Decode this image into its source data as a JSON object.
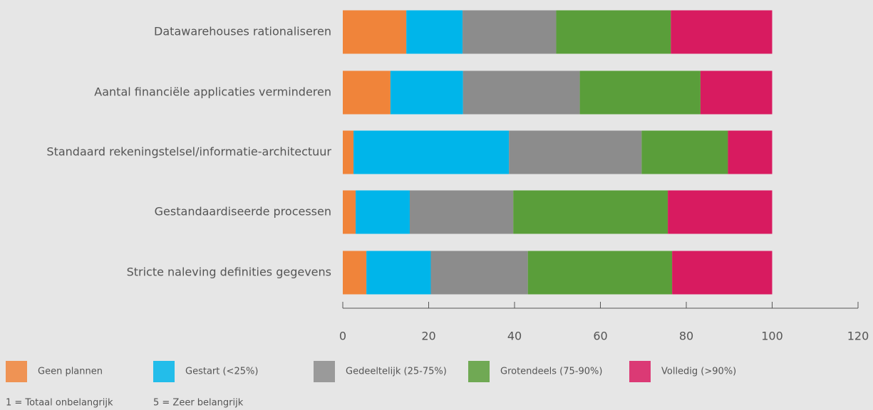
{
  "chart_data": {
    "type": "stacked-barh",
    "categories": [
      "Datawarehouses rationaliseren",
      "Aantal financiële applicaties verminderen",
      "Standaard rekeningstelsel/informatie-architectuur",
      "Gestandaardiseerde processen",
      "Stricte naleving definities gegevens"
    ],
    "series": [
      {
        "name": "Geen plannen",
        "color": "#f0843a",
        "values": [
          14.8,
          11.1,
          2.5,
          3,
          5.5
        ]
      },
      {
        "name": "Gestart (<25%)",
        "color": "#00b5ea",
        "values": [
          13.1,
          16.9,
          36.2,
          12.6,
          15
        ]
      },
      {
        "name": "Gedeeltelijk (25-75%)",
        "color": "#8c8c8c",
        "values": [
          21.8,
          27.2,
          30.9,
          24.1,
          22.6
        ]
      },
      {
        "name": "Grotendeels (75-90%)",
        "color": "#5a9e3a",
        "values": [
          26.7,
          28.1,
          20.1,
          36,
          33.6
        ]
      },
      {
        "name": "Volledig (>90%)",
        "color": "#d81b60",
        "values": [
          23.6,
          16.7,
          10.3,
          24.3,
          23.3
        ]
      }
    ],
    "xlim": [
      0,
      120
    ],
    "xticks": [
      0,
      20,
      40,
      60,
      80,
      100,
      120
    ],
    "notes": [
      "1 = Totaal onbelangrijk",
      "5 = Zeer belangrijk"
    ]
  }
}
